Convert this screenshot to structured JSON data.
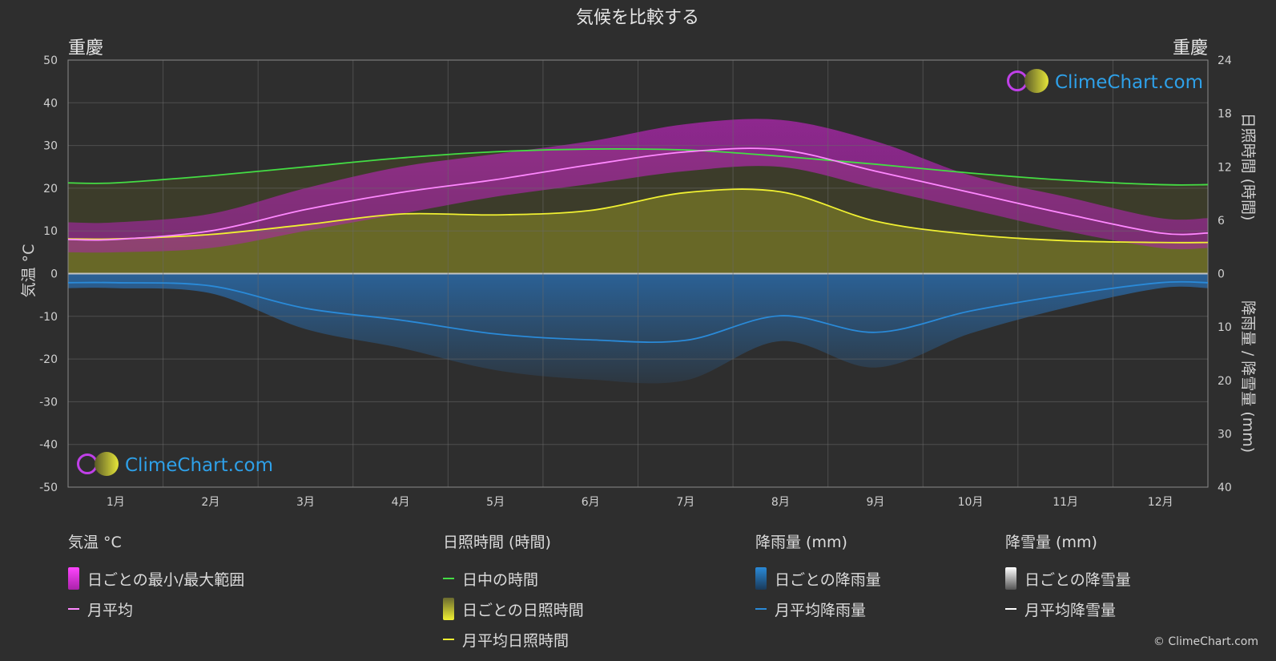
{
  "title": "気候を比較する",
  "city_left": "重慶",
  "city_right": "重慶",
  "copyright": "© ClimeChart.com",
  "logo_text": "ClimeChart.com",
  "colors": {
    "background": "#2e2e2e",
    "daylight": "#44dd44",
    "sunshine_avg": "#f0f032",
    "temp_avg": "#ff88ff",
    "temp_range": "#dd22dd",
    "rain": "#2a8ad8",
    "snow": "#ffffff"
  },
  "legend": {
    "temp": {
      "header": "気温 °C",
      "range": "日ごとの最小/最大範囲",
      "avg": "月平均"
    },
    "sun": {
      "header": "日照時間 (時間)",
      "daylight": "日中の時間",
      "daily": "日ごとの日照時間",
      "avg": "月平均日照時間"
    },
    "rain": {
      "header": "降雨量 (mm)",
      "daily": "日ごとの降雨量",
      "avg": "月平均降雨量"
    },
    "snow": {
      "header": "降雪量 (mm)",
      "daily": "日ごとの降雪量",
      "avg": "月平均降雪量"
    }
  },
  "chart_data": {
    "type": "line",
    "categories": [
      "1月",
      "2月",
      "3月",
      "4月",
      "5月",
      "6月",
      "7月",
      "8月",
      "9月",
      "10月",
      "11月",
      "12月"
    ],
    "y_left": {
      "label": "気温 °C",
      "range": [
        -50,
        50
      ],
      "ticks": [
        50,
        40,
        30,
        20,
        10,
        0,
        -10,
        -20,
        -30,
        -40,
        -50
      ]
    },
    "y_right_top": {
      "label": "日照時間 (時間)",
      "range": [
        0,
        24
      ],
      "ticks": [
        24,
        18,
        12,
        6,
        0
      ]
    },
    "y_right_bottom": {
      "label": "降雨量 / 降雪量 (mm)",
      "range": [
        0,
        40
      ],
      "ticks": [
        0,
        10,
        20,
        30,
        40
      ]
    },
    "grid": true,
    "series": [
      {
        "name": "日中の時間",
        "axis": "sun",
        "values": [
          10.2,
          11.0,
          12.0,
          13.0,
          13.7,
          14.0,
          13.9,
          13.2,
          12.3,
          11.3,
          10.5,
          10.0
        ]
      },
      {
        "name": "月平均日照時間",
        "axis": "sun",
        "values": [
          3.9,
          4.4,
          5.5,
          6.7,
          6.6,
          7.1,
          9.1,
          9.2,
          5.9,
          4.4,
          3.7,
          3.5
        ]
      },
      {
        "name": "月平均",
        "axis": "temp",
        "values": [
          8.0,
          10.0,
          15.0,
          19.0,
          22.0,
          25.5,
          28.5,
          29.0,
          24.0,
          19.0,
          14.0,
          9.5
        ]
      },
      {
        "name": "月平均降雨量",
        "axis": "rain",
        "values": [
          1.7,
          2.3,
          6.5,
          8.7,
          11.3,
          12.4,
          12.5,
          7.9,
          11.0,
          7.0,
          4.0,
          1.7
        ]
      }
    ],
    "temp_range": {
      "min": [
        5,
        6,
        10,
        14,
        18,
        21,
        24,
        25,
        20,
        15,
        10,
        6
      ],
      "max": [
        12,
        14,
        20,
        25,
        28,
        31,
        35,
        36,
        31,
        23,
        18,
        13
      ]
    }
  }
}
